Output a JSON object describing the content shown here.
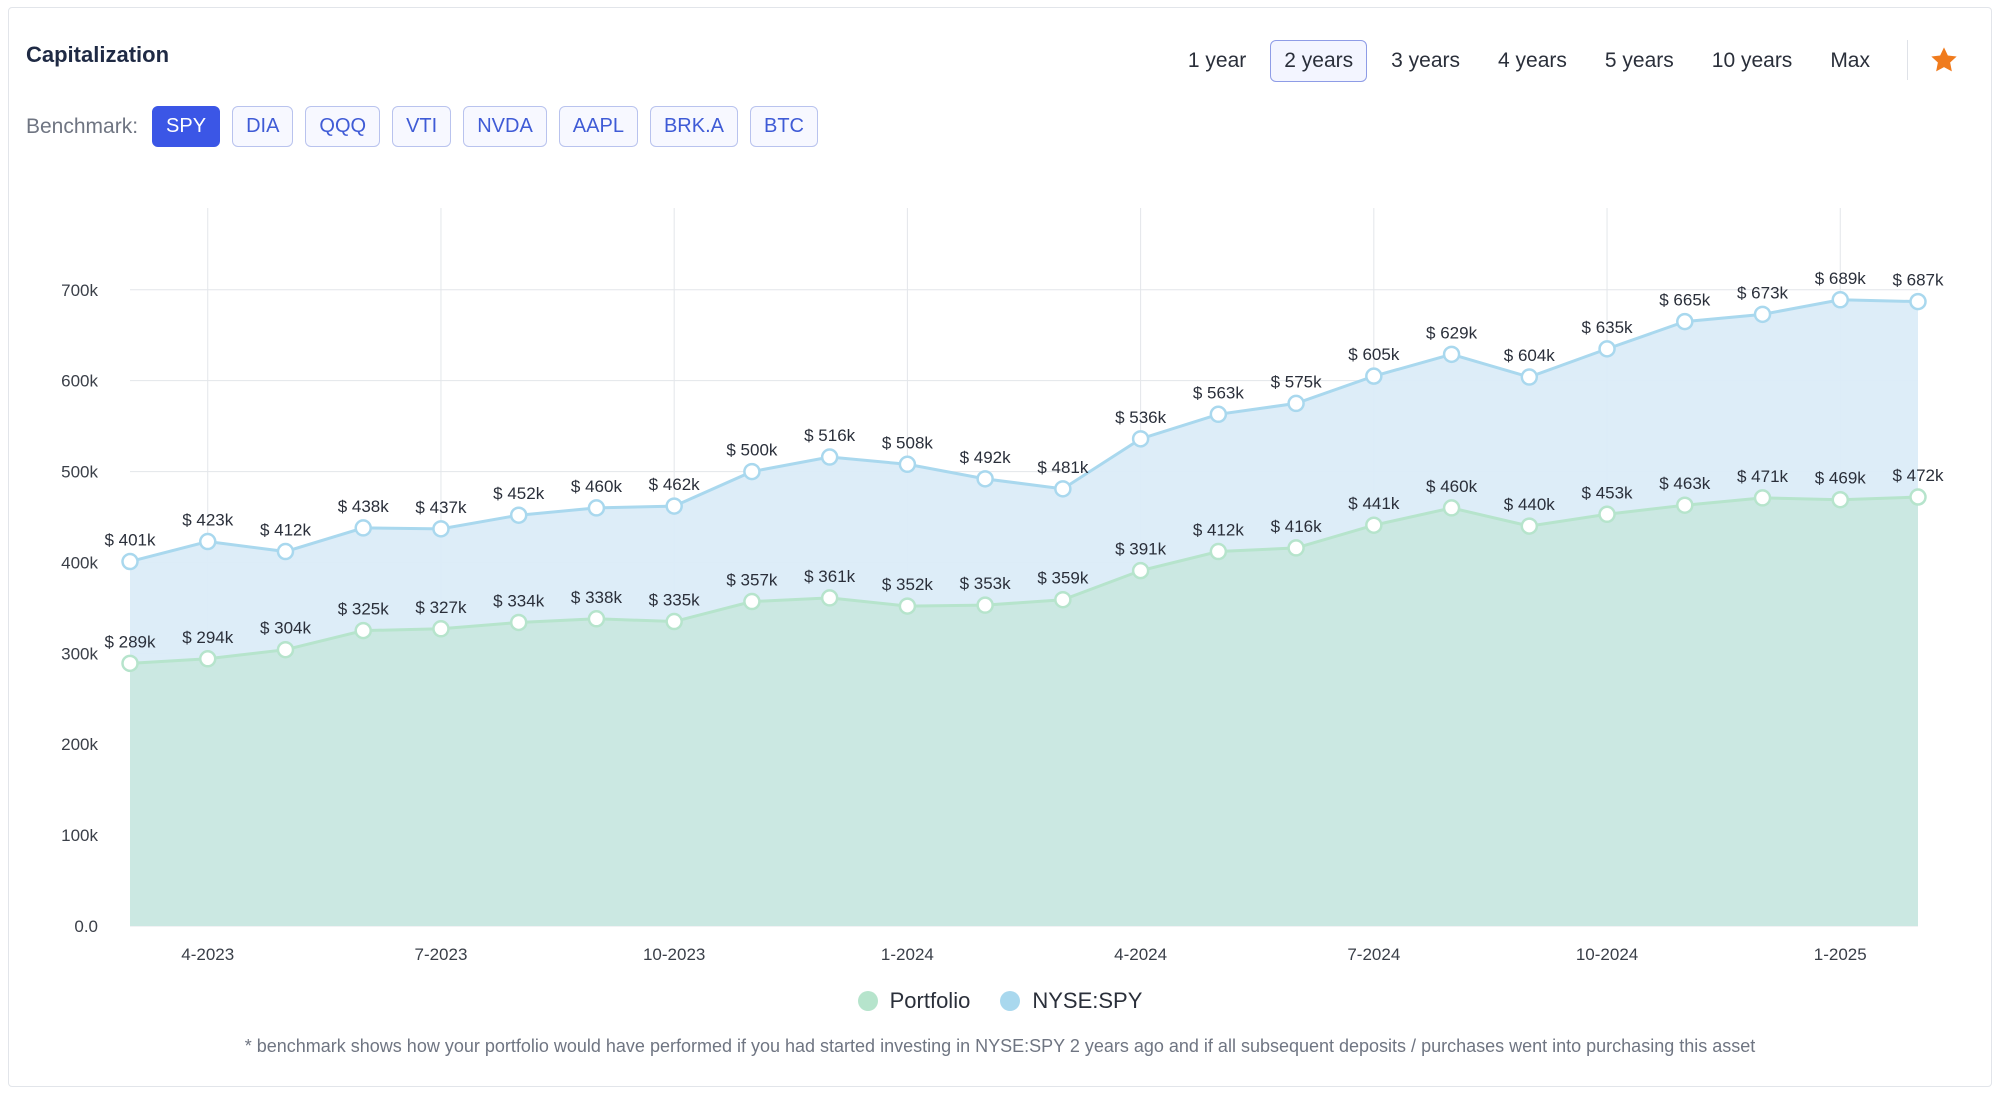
{
  "header": {
    "title": "Capitalization",
    "ranges": [
      "1 year",
      "2 years",
      "3 years",
      "4 years",
      "5 years",
      "10 years",
      "Max"
    ],
    "active_range": "2 years",
    "star_icon": "star-icon",
    "star_color": "#f07b1d"
  },
  "benchmark": {
    "label": "Benchmark:",
    "options": [
      "SPY",
      "DIA",
      "QQQ",
      "VTI",
      "NVDA",
      "AAPL",
      "BRK.A",
      "BTC"
    ],
    "active": "SPY"
  },
  "chart_data": {
    "type": "area",
    "x": [
      "2023-03",
      "2023-04",
      "2023-05",
      "2023-06",
      "2023-07",
      "2023-08",
      "2023-09",
      "2023-10",
      "2023-11",
      "2023-12",
      "2024-01",
      "2024-02",
      "2024-03",
      "2024-04",
      "2024-05",
      "2024-06",
      "2024-07",
      "2024-08",
      "2024-09",
      "2024-10",
      "2024-11",
      "2024-12",
      "2025-01",
      "2025-02"
    ],
    "x_tick_labels": [
      "4-2023",
      "7-2023",
      "10-2023",
      "1-2024",
      "4-2024",
      "7-2024",
      "10-2024",
      "1-2025"
    ],
    "x_tick_dates": [
      "2023-04",
      "2023-07",
      "2023-10",
      "2024-01",
      "2024-04",
      "2024-07",
      "2024-10",
      "2025-01"
    ],
    "y_tick_labels": [
      "0.0",
      "100k",
      "200k",
      "300k",
      "400k",
      "500k",
      "600k",
      "700k"
    ],
    "ylim": [
      0,
      790000
    ],
    "grid": true,
    "legend_placement": "bottom",
    "series": [
      {
        "name": "NYSE:SPY",
        "color": "#a9d8ee",
        "fill": "#dbecf8",
        "values": [
          401000,
          423000,
          412000,
          438000,
          437000,
          452000,
          460000,
          462000,
          500000,
          516000,
          508000,
          492000,
          481000,
          536000,
          563000,
          575000,
          605000,
          629000,
          604000,
          635000,
          665000,
          673000,
          689000,
          687000
        ],
        "labels": [
          "$ 401k",
          "$ 423k",
          "$ 412k",
          "$ 438k",
          "$ 437k",
          "$ 452k",
          "$ 460k",
          "$ 462k",
          "$ 500k",
          "$ 516k",
          "$ 508k",
          "$ 492k",
          "$ 481k",
          "$ 536k",
          "$ 563k",
          "$ 575k",
          "$ 605k",
          "$ 629k",
          "$ 604k",
          "$ 635k",
          "$ 665k",
          "$ 673k",
          "$ 689k",
          "$ 687k"
        ]
      },
      {
        "name": "Portfolio",
        "color": "#b6e4cc",
        "fill": "#cbe8e2",
        "values": [
          289000,
          294000,
          304000,
          325000,
          327000,
          334000,
          338000,
          335000,
          357000,
          361000,
          352000,
          353000,
          359000,
          391000,
          412000,
          416000,
          441000,
          460000,
          440000,
          453000,
          463000,
          471000,
          469000,
          472000
        ],
        "labels": [
          "$ 289k",
          "$ 294k",
          "$ 304k",
          "$ 325k",
          "$ 327k",
          "$ 334k",
          "$ 338k",
          "$ 335k",
          "$ 357k",
          "$ 361k",
          "$ 352k",
          "$ 353k",
          "$ 359k",
          "$ 391k",
          "$ 412k",
          "$ 416k",
          "$ 441k",
          "$ 460k",
          "$ 440k",
          "$ 453k",
          "$ 463k",
          "$ 471k",
          "$ 469k",
          "$ 472k"
        ]
      }
    ]
  },
  "legend": {
    "portfolio": "Portfolio",
    "benchmark": "NYSE:SPY",
    "portfolio_color": "#b6e4cc",
    "benchmark_color": "#a9d8ee"
  },
  "footnote": "* benchmark shows how your portfolio would have performed if you had started investing in NYSE:SPY 2 years ago and if all subsequent deposits / purchases went into purchasing this asset"
}
